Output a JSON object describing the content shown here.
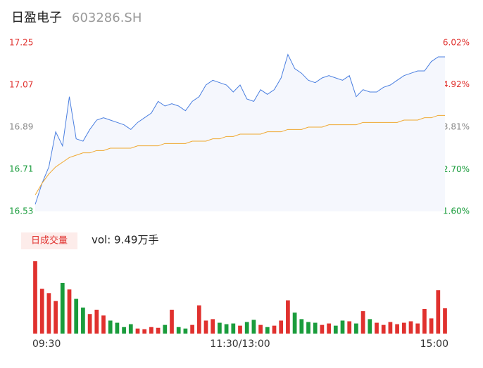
{
  "header": {
    "name": "日盈电子",
    "code": "603286.SH"
  },
  "chart_data": {
    "type": "line",
    "x": [
      0,
      4,
      8,
      12,
      16,
      20,
      24,
      28,
      32,
      36,
      40,
      44,
      48,
      52,
      56,
      60,
      64,
      68,
      72,
      76,
      80,
      84,
      88,
      92,
      96,
      100,
      104,
      108,
      112,
      116,
      120,
      124,
      128,
      132,
      136,
      140,
      144,
      148,
      152,
      156,
      160,
      164,
      168,
      172,
      176,
      180,
      184,
      188,
      192,
      196,
      200,
      204,
      208,
      212,
      216,
      220,
      224,
      228,
      232,
      236,
      240
    ],
    "xlim": [
      0,
      240
    ],
    "xticks": [
      {
        "value": 0,
        "label": "09:30"
      },
      {
        "value": 120,
        "label": "11:30/13:00"
      },
      {
        "value": 240,
        "label": "15:00"
      }
    ],
    "ylim": [
      16.53,
      17.25
    ],
    "yticks": [
      16.53,
      16.71,
      16.89,
      17.07,
      17.25
    ],
    "ytick_colors": [
      "#1a9c3c",
      "#1a9c3c",
      "#888888",
      "#e0312e",
      "#e0312e"
    ],
    "y2lim": [
      1.6,
      6.02
    ],
    "y2ticks": [
      {
        "value": 1.6,
        "label": "1.60%"
      },
      {
        "value": 2.7,
        "label": "2.70%"
      },
      {
        "value": 3.81,
        "label": "3.81%"
      },
      {
        "value": 4.92,
        "label": "4.92%"
      },
      {
        "value": 6.02,
        "label": "6.02%"
      }
    ],
    "series": [
      {
        "name": "price",
        "color": "#4a7fe0",
        "values": [
          16.56,
          16.65,
          16.72,
          16.87,
          16.81,
          17.02,
          16.84,
          16.83,
          16.88,
          16.92,
          16.93,
          16.92,
          16.91,
          16.9,
          16.88,
          16.91,
          16.93,
          16.95,
          17.0,
          16.98,
          16.99,
          16.98,
          16.96,
          17.0,
          17.02,
          17.07,
          17.09,
          17.08,
          17.07,
          17.04,
          17.07,
          17.01,
          17.0,
          17.05,
          17.03,
          17.05,
          17.1,
          17.2,
          17.14,
          17.12,
          17.09,
          17.08,
          17.1,
          17.11,
          17.1,
          17.09,
          17.11,
          17.02,
          17.05,
          17.04,
          17.04,
          17.06,
          17.07,
          17.09,
          17.11,
          17.12,
          17.13,
          17.13,
          17.17,
          17.19,
          17.19
        ]
      },
      {
        "name": "avg",
        "color": "#f0a830",
        "values": [
          16.6,
          16.65,
          16.69,
          16.72,
          16.74,
          16.76,
          16.77,
          16.78,
          16.78,
          16.79,
          16.79,
          16.8,
          16.8,
          16.8,
          16.8,
          16.81,
          16.81,
          16.81,
          16.81,
          16.82,
          16.82,
          16.82,
          16.82,
          16.83,
          16.83,
          16.83,
          16.84,
          16.84,
          16.85,
          16.85,
          16.86,
          16.86,
          16.86,
          16.86,
          16.87,
          16.87,
          16.87,
          16.88,
          16.88,
          16.88,
          16.89,
          16.89,
          16.89,
          16.9,
          16.9,
          16.9,
          16.9,
          16.9,
          16.91,
          16.91,
          16.91,
          16.91,
          16.91,
          16.91,
          16.92,
          16.92,
          16.92,
          16.93,
          16.93,
          16.94,
          16.94
        ]
      }
    ],
    "volume": {
      "label": "日成交量",
      "text": "vol: 9.49万手",
      "values": [
        1000,
        620,
        560,
        450,
        700,
        610,
        480,
        360,
        270,
        330,
        250,
        180,
        150,
        90,
        130,
        70,
        60,
        90,
        80,
        120,
        330,
        90,
        70,
        120,
        390,
        180,
        200,
        150,
        130,
        140,
        110,
        160,
        190,
        120,
        90,
        110,
        180,
        460,
        290,
        200,
        160,
        150,
        120,
        140,
        110,
        180,
        170,
        140,
        310,
        200,
        150,
        120,
        160,
        130,
        150,
        170,
        140,
        340,
        210,
        600,
        350
      ]
    }
  }
}
